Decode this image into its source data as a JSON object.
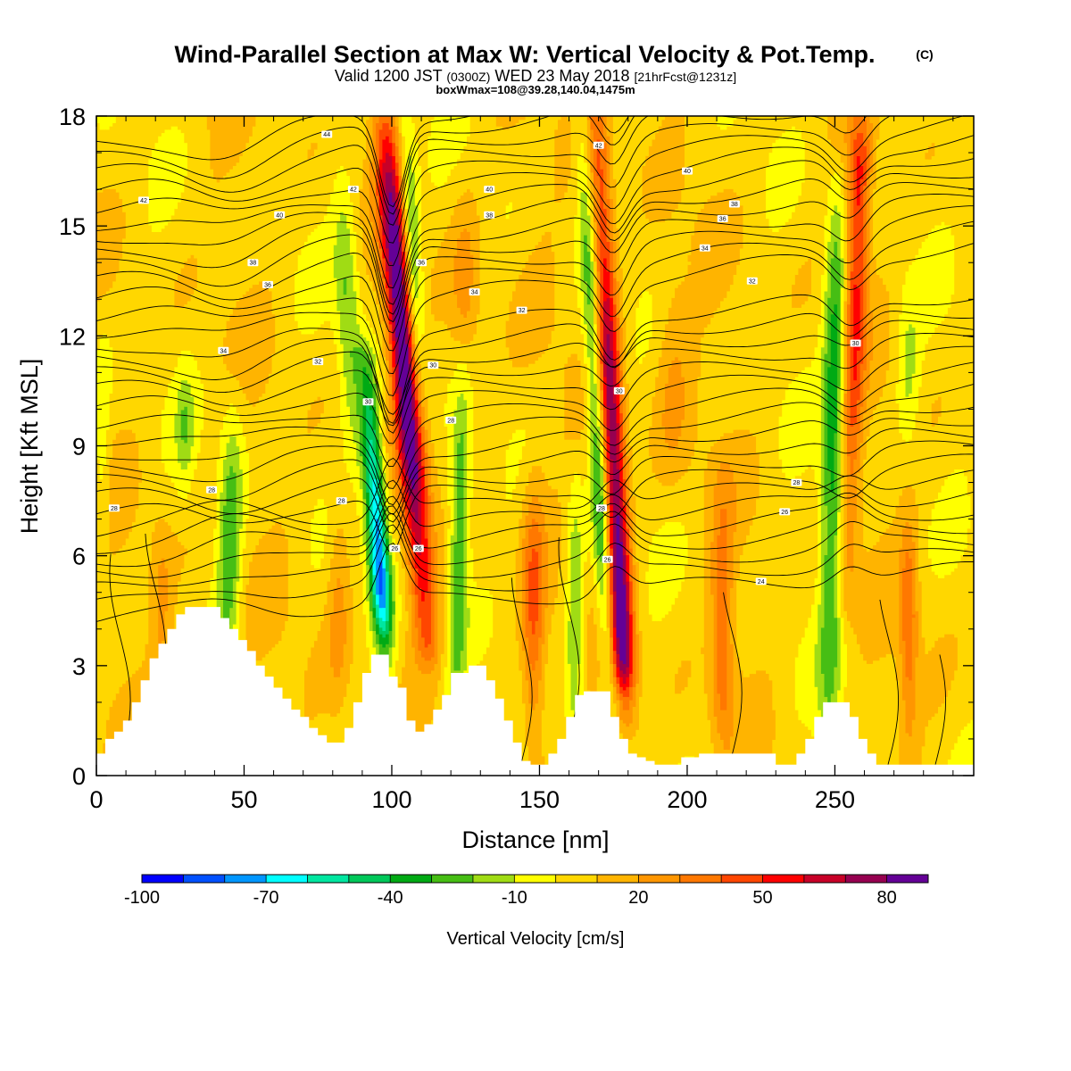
{
  "chart_data": {
    "type": "heatmap",
    "title": "Wind-Parallel Section at Max W: Vertical Velocity & Pot.Temp.",
    "title_mark": "(C)",
    "subtitle_main": "Valid 1200 JST",
    "subtitle_z": "(0300Z)",
    "subtitle_date": "WED 23 May 2018",
    "subtitle_fcst": "[21hrFcst@1231z]",
    "subtitle2": "boxWmax=108@39.28,140.04,1475m",
    "xlabel": "Distance [nm]",
    "ylabel": "Height [Kft MSL]",
    "xlim": [
      0,
      297
    ],
    "ylim": [
      0,
      18
    ],
    "xticks": [
      0,
      50,
      100,
      150,
      200,
      250
    ],
    "yticks": [
      0,
      3,
      6,
      9,
      12,
      15,
      18
    ],
    "colorbar": {
      "label": "Vertical Velocity [cm/s]",
      "levels": [
        -100,
        -90,
        -80,
        -70,
        -60,
        -50,
        -40,
        -30,
        -20,
        -10,
        0,
        10,
        20,
        30,
        40,
        50,
        60,
        70,
        80,
        90
      ],
      "tick_labels": [
        "-100",
        "-70",
        "-40",
        "-10",
        "20",
        "50",
        "80"
      ],
      "tick_values": [
        -100,
        -70,
        -40,
        -10,
        20,
        50,
        80
      ],
      "colors": [
        "#0000ff",
        "#0050ff",
        "#0096ff",
        "#00ffff",
        "#00e6a0",
        "#00c85a",
        "#00aa14",
        "#46be14",
        "#a0dc14",
        "#ffff00",
        "#ffd700",
        "#ffb400",
        "#ff9600",
        "#ff7800",
        "#ff4600",
        "#ff0000",
        "#c80028",
        "#960050",
        "#640096"
      ]
    },
    "updrafts": [
      {
        "x": 103,
        "ztop": 18,
        "zbot": 3.8,
        "zpeak": 12.5,
        "width": 4.5,
        "peak": 90,
        "lean": -1.0
      },
      {
        "x": 178,
        "ztop": 18,
        "zbot": 2.0,
        "zpeak": 3.8,
        "width": 4.0,
        "peak": 85,
        "lean": -0.6
      },
      {
        "x": 258,
        "ztop": 18,
        "zbot": 5.0,
        "zpeak": 16.0,
        "width": 4.0,
        "peak": 48,
        "lean": 0.4
      },
      {
        "x": 148,
        "ztop": 8.0,
        "zbot": 0.4,
        "zpeak": 4.5,
        "width": 4.0,
        "peak": 35,
        "lean": 0
      },
      {
        "x": 212,
        "ztop": 8.0,
        "zbot": 1.0,
        "zpeak": 3.0,
        "width": 4.0,
        "peak": 30,
        "lean": 0
      },
      {
        "x": 275,
        "ztop": 7.0,
        "zbot": 0.8,
        "zpeak": 4.5,
        "width": 3.0,
        "peak": 30,
        "lean": 0
      },
      {
        "x": 22,
        "ztop": 7.0,
        "zbot": 1.5,
        "zpeak": 5.0,
        "width": 4.0,
        "peak": 16,
        "lean": 0
      },
      {
        "x": 82,
        "ztop": 8.0,
        "zbot": 2.0,
        "zpeak": 5.0,
        "width": 4.0,
        "peak": 18,
        "lean": 0
      },
      {
        "x": 125,
        "ztop": 16.0,
        "zbot": 9.0,
        "zpeak": 13.0,
        "width": 5.0,
        "peak": 18,
        "lean": 0
      },
      {
        "x": 195,
        "ztop": 14.0,
        "zbot": 8.0,
        "zpeak": 11.0,
        "width": 6.0,
        "peak": 14,
        "lean": 0
      }
    ],
    "downdrafts": [
      {
        "x": 96,
        "ztop": 11.0,
        "zbot": 3.5,
        "zpeak": 5.5,
        "width": 3.5,
        "peak": -85,
        "lean": -0.8
      },
      {
        "x": 107,
        "ztop": 18,
        "zbot": 10.0,
        "zpeak": 14.0,
        "width": 3.0,
        "peak": -38,
        "lean": -0.6
      },
      {
        "x": 123,
        "ztop": 11.0,
        "zbot": 1.5,
        "zpeak": 7.0,
        "width": 3.5,
        "peak": -38,
        "lean": 0.3
      },
      {
        "x": 171,
        "ztop": 18,
        "zbot": 2.5,
        "zpeak": 7.0,
        "width": 3.0,
        "peak": -42,
        "lean": -0.6
      },
      {
        "x": 250,
        "ztop": 16.0,
        "zbot": 1.0,
        "zpeak": 11.0,
        "width": 4.0,
        "peak": -45,
        "lean": 0.2
      },
      {
        "x": 45,
        "ztop": 10.0,
        "zbot": 3.0,
        "zpeak": 6.0,
        "width": 4.0,
        "peak": -35,
        "lean": 0.3
      },
      {
        "x": 85,
        "ztop": 16.0,
        "zbot": 9.0,
        "zpeak": 13.0,
        "width": 4.0,
        "peak": -25,
        "lean": -0.5
      },
      {
        "x": 162,
        "ztop": 8.0,
        "zbot": 0.5,
        "zpeak": 4.0,
        "width": 3.0,
        "peak": -28,
        "lean": 0
      },
      {
        "x": 30,
        "ztop": 11.0,
        "zbot": 8.0,
        "zpeak": 9.5,
        "width": 3.0,
        "peak": -18,
        "lean": 0
      },
      {
        "x": 2,
        "ztop": 12.0,
        "zbot": 6.0,
        "zpeak": 9.0,
        "width": 2.5,
        "peak": -15,
        "lean": 0
      },
      {
        "x": 275,
        "ztop": 13.0,
        "zbot": 9.0,
        "zpeak": 11.0,
        "width": 4.0,
        "peak": -18,
        "lean": 0
      }
    ],
    "terrain": [
      {
        "x": 0,
        "z": 0.6
      },
      {
        "x": 3,
        "z": 1.0
      },
      {
        "x": 6,
        "z": 1.2
      },
      {
        "x": 9,
        "z": 1.5
      },
      {
        "x": 12,
        "z": 2.0
      },
      {
        "x": 15,
        "z": 2.6
      },
      {
        "x": 18,
        "z": 3.2
      },
      {
        "x": 21,
        "z": 3.6
      },
      {
        "x": 24,
        "z": 4.0
      },
      {
        "x": 27,
        "z": 4.4
      },
      {
        "x": 30,
        "z": 4.6
      },
      {
        "x": 38,
        "z": 4.6
      },
      {
        "x": 42,
        "z": 4.3
      },
      {
        "x": 45,
        "z": 4.0
      },
      {
        "x": 48,
        "z": 3.7
      },
      {
        "x": 51,
        "z": 3.4
      },
      {
        "x": 54,
        "z": 3.0
      },
      {
        "x": 57,
        "z": 2.7
      },
      {
        "x": 60,
        "z": 2.4
      },
      {
        "x": 63,
        "z": 2.1
      },
      {
        "x": 66,
        "z": 1.8
      },
      {
        "x": 69,
        "z": 1.6
      },
      {
        "x": 72,
        "z": 1.3
      },
      {
        "x": 75,
        "z": 1.1
      },
      {
        "x": 78,
        "z": 0.9
      },
      {
        "x": 81,
        "z": 0.9
      },
      {
        "x": 84,
        "z": 1.3
      },
      {
        "x": 87,
        "z": 2.0
      },
      {
        "x": 90,
        "z": 2.8
      },
      {
        "x": 93,
        "z": 3.3
      },
      {
        "x": 96,
        "z": 3.3
      },
      {
        "x": 99,
        "z": 2.7
      },
      {
        "x": 102,
        "z": 2.4
      },
      {
        "x": 105,
        "z": 1.5
      },
      {
        "x": 108,
        "z": 1.2
      },
      {
        "x": 111,
        "z": 1.4
      },
      {
        "x": 114,
        "z": 1.8
      },
      {
        "x": 117,
        "z": 2.2
      },
      {
        "x": 120,
        "z": 2.8
      },
      {
        "x": 126,
        "z": 3.0
      },
      {
        "x": 132,
        "z": 2.6
      },
      {
        "x": 135,
        "z": 2.1
      },
      {
        "x": 138,
        "z": 1.5
      },
      {
        "x": 141,
        "z": 0.9
      },
      {
        "x": 144,
        "z": 0.4
      },
      {
        "x": 147,
        "z": 0.3
      },
      {
        "x": 150,
        "z": 0.3
      },
      {
        "x": 153,
        "z": 0.6
      },
      {
        "x": 156,
        "z": 1.0
      },
      {
        "x": 159,
        "z": 1.6
      },
      {
        "x": 162,
        "z": 2.2
      },
      {
        "x": 165,
        "z": 2.3
      },
      {
        "x": 171,
        "z": 2.3
      },
      {
        "x": 174,
        "z": 1.6
      },
      {
        "x": 177,
        "z": 1.0
      },
      {
        "x": 180,
        "z": 0.6
      },
      {
        "x": 183,
        "z": 0.5
      },
      {
        "x": 186,
        "z": 0.4
      },
      {
        "x": 189,
        "z": 0.3
      },
      {
        "x": 195,
        "z": 0.3
      },
      {
        "x": 198,
        "z": 0.5
      },
      {
        "x": 204,
        "z": 0.6
      },
      {
        "x": 210,
        "z": 0.6
      },
      {
        "x": 225,
        "z": 0.6
      },
      {
        "x": 230,
        "z": 0.3
      },
      {
        "x": 234,
        "z": 0.3
      },
      {
        "x": 237,
        "z": 0.6
      },
      {
        "x": 240,
        "z": 1.0
      },
      {
        "x": 243,
        "z": 1.6
      },
      {
        "x": 246,
        "z": 2.0
      },
      {
        "x": 252,
        "z": 2.0
      },
      {
        "x": 255,
        "z": 1.6
      },
      {
        "x": 258,
        "z": 1.0
      },
      {
        "x": 261,
        "z": 0.6
      },
      {
        "x": 264,
        "z": 0.3
      },
      {
        "x": 297,
        "z": 0.3
      }
    ],
    "theta_contours": [
      {
        "label": "44",
        "label_at": [
          78,
          17.5
        ]
      },
      {
        "label": "42",
        "label_at": [
          16,
          15.7
        ]
      },
      {
        "label": "42",
        "label_at": [
          87,
          16.0
        ]
      },
      {
        "label": "42",
        "label_at": [
          170,
          17.2
        ]
      },
      {
        "label": "40",
        "label_at": [
          62,
          15.3
        ]
      },
      {
        "label": "40",
        "label_at": [
          133,
          16.0
        ]
      },
      {
        "label": "40",
        "label_at": [
          200,
          16.5
        ]
      },
      {
        "label": "38",
        "label_at": [
          53,
          14.0
        ]
      },
      {
        "label": "38",
        "label_at": [
          133,
          15.3
        ]
      },
      {
        "label": "38",
        "label_at": [
          216,
          15.6
        ]
      },
      {
        "label": "36",
        "label_at": [
          58,
          13.4
        ]
      },
      {
        "label": "36",
        "label_at": [
          110,
          14.0
        ]
      },
      {
        "label": "36",
        "label_at": [
          212,
          15.2
        ]
      },
      {
        "label": "34",
        "label_at": [
          43,
          11.6
        ]
      },
      {
        "label": "34",
        "label_at": [
          128,
          13.2
        ]
      },
      {
        "label": "34",
        "label_at": [
          206,
          14.4
        ]
      },
      {
        "label": "32",
        "label_at": [
          75,
          11.3
        ]
      },
      {
        "label": "32",
        "label_at": [
          144,
          12.7
        ]
      },
      {
        "label": "32",
        "label_at": [
          222,
          13.5
        ]
      },
      {
        "label": "30",
        "label_at": [
          92,
          10.2
        ]
      },
      {
        "label": "30",
        "label_at": [
          114,
          11.2
        ]
      },
      {
        "label": "30",
        "label_at": [
          177,
          10.5
        ]
      },
      {
        "label": "30",
        "label_at": [
          257,
          11.8
        ]
      },
      {
        "label": "28",
        "label_at": [
          120,
          9.7
        ]
      },
      {
        "label": "28",
        "label_at": [
          6,
          7.3
        ]
      },
      {
        "label": "28",
        "label_at": [
          39,
          7.8
        ]
      },
      {
        "label": "28",
        "label_at": [
          83,
          7.5
        ]
      },
      {
        "label": "28",
        "label_at": [
          171,
          7.3
        ]
      },
      {
        "label": "28",
        "label_at": [
          237,
          8.0
        ]
      },
      {
        "label": "26",
        "label_at": [
          101,
          6.2
        ]
      },
      {
        "label": "26",
        "label_at": [
          109,
          6.2
        ]
      },
      {
        "label": "26",
        "label_at": [
          173,
          5.9
        ]
      },
      {
        "label": "26",
        "label_at": [
          233,
          7.2
        ]
      },
      {
        "label": "24",
        "label_at": [
          225,
          5.3
        ]
      }
    ]
  }
}
